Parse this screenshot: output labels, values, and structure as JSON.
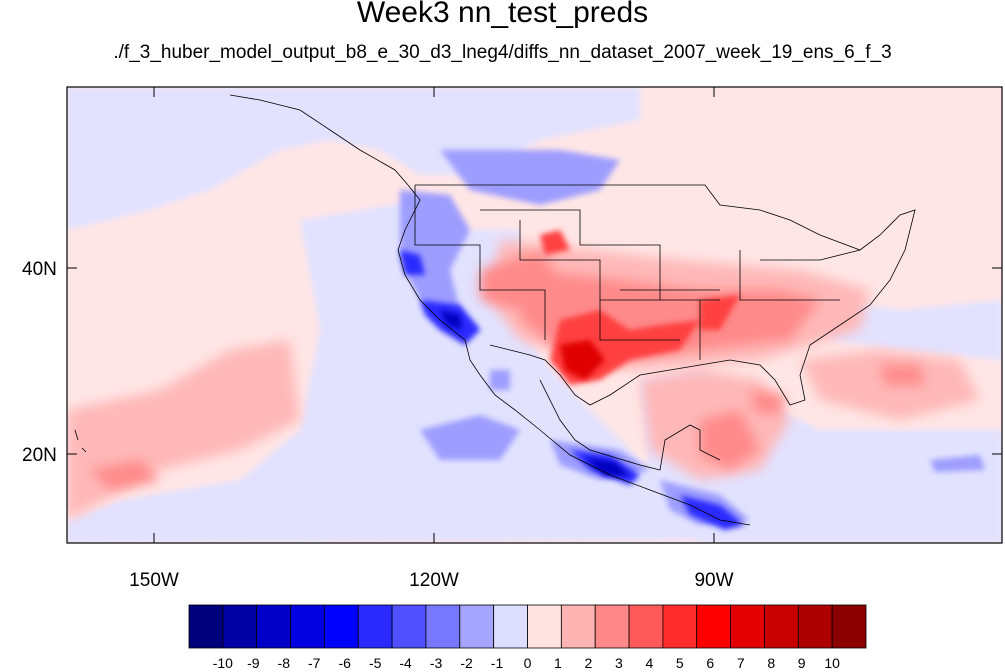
{
  "title": "Week3 nn_test_preds",
  "subtitle": "./f_3_huber_model_output_b8_e_30_d3_lneg4/diffs_nn_dataset_2007_week_19_ens_6_f_3",
  "axes": {
    "lon_labels": [
      "150W",
      "120W",
      "90W"
    ],
    "lat_labels": [
      "40N",
      "20N"
    ]
  },
  "colorbar": {
    "labels": [
      "-10",
      "-9",
      "-8",
      "-7",
      "-6",
      "-5",
      "-4",
      "-3",
      "-2",
      "-1",
      "0",
      "1",
      "2",
      "3",
      "4",
      "5",
      "6",
      "7",
      "8",
      "9",
      "10"
    ],
    "colors": [
      "#00007a",
      "#0000a5",
      "#0000c8",
      "#0000e0",
      "#0000ff",
      "#2a2aff",
      "#5050ff",
      "#7777ff",
      "#a5a5ff",
      "#ddddff",
      "#ffe2e2",
      "#ffb4b4",
      "#ff8888",
      "#ff5a5a",
      "#ff2d2d",
      "#ff0000",
      "#e30000",
      "#c80000",
      "#ad0000",
      "#8a0000"
    ]
  },
  "map": {
    "background_color": "#ffe6e6",
    "land_lines_color": "#000000"
  }
}
